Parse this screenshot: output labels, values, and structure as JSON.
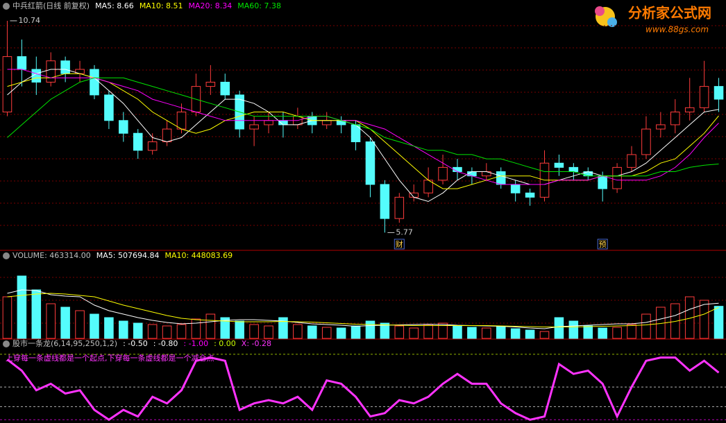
{
  "chart_data": [
    {
      "type": "candlestick",
      "title": "中兵红箭(日线 前复权)",
      "ylim": [
        5.5,
        11.0
      ],
      "up_color": "#ff3c3c",
      "down_color": "#54fcfc",
      "open": [
        8.6,
        9.9,
        9.6,
        9.3,
        9.8,
        9.5,
        9.6,
        9.0,
        8.4,
        8.1,
        7.7,
        7.9,
        8.2,
        8.6,
        9.2,
        9.3,
        9.0,
        8.2,
        8.3,
        8.4,
        8.3,
        8.5,
        8.3,
        8.4,
        8.3,
        7.9,
        6.9,
        6.1,
        6.6,
        6.7,
        7.0,
        7.3,
        7.2,
        7.1,
        7.2,
        6.9,
        6.7,
        6.6,
        7.4,
        7.3,
        7.2,
        7.1,
        6.8,
        7.3,
        7.6,
        8.2,
        8.3,
        8.6,
        8.7,
        9.2
      ],
      "high": [
        10.74,
        10.3,
        9.9,
        10.0,
        9.9,
        9.8,
        9.7,
        9.1,
        8.6,
        8.2,
        8.1,
        8.4,
        8.8,
        9.5,
        9.7,
        9.5,
        9.1,
        8.5,
        8.6,
        8.6,
        8.7,
        8.6,
        8.6,
        8.5,
        8.4,
        8.0,
        7.0,
        6.7,
        6.9,
        7.3,
        7.6,
        7.5,
        7.3,
        7.4,
        7.3,
        7.0,
        6.8,
        7.7,
        7.6,
        7.4,
        7.3,
        7.2,
        7.4,
        7.8,
        8.5,
        8.6,
        8.9,
        9.4,
        9.8,
        9.4
      ],
      "low": [
        8.5,
        9.2,
        9.0,
        9.2,
        9.3,
        9.3,
        8.9,
        8.2,
        7.9,
        7.5,
        7.6,
        7.8,
        8.1,
        8.5,
        9.0,
        8.9,
        8.0,
        7.8,
        8.1,
        8.0,
        8.2,
        8.1,
        8.2,
        8.1,
        7.7,
        6.6,
        5.77,
        6.0,
        6.5,
        6.6,
        6.9,
        7.0,
        6.9,
        7.0,
        6.8,
        6.5,
        6.4,
        6.5,
        7.1,
        7.0,
        7.0,
        6.5,
        6.7,
        7.2,
        7.5,
        8.0,
        8.1,
        8.4,
        8.6,
        8.6
      ],
      "close": [
        9.9,
        9.6,
        9.3,
        9.8,
        9.5,
        9.6,
        9.0,
        8.4,
        8.1,
        7.7,
        7.9,
        8.2,
        8.6,
        9.2,
        9.3,
        9.0,
        8.2,
        8.3,
        8.4,
        8.3,
        8.5,
        8.3,
        8.4,
        8.3,
        7.9,
        6.9,
        6.1,
        6.6,
        6.7,
        7.0,
        7.3,
        7.2,
        7.1,
        7.2,
        6.9,
        6.7,
        6.6,
        7.4,
        7.3,
        7.2,
        7.1,
        6.8,
        7.3,
        7.6,
        8.2,
        8.3,
        8.6,
        8.7,
        9.2,
        8.9
      ],
      "series": [
        {
          "name": "MA5: 8.66",
          "color": "#ffffff",
          "values": [
            9.0,
            9.3,
            9.5,
            9.6,
            9.6,
            9.5,
            9.4,
            9.1,
            8.8,
            8.4,
            8.0,
            7.9,
            8.0,
            8.3,
            8.6,
            8.9,
            8.9,
            8.8,
            8.6,
            8.3,
            8.3,
            8.4,
            8.4,
            8.4,
            8.3,
            8.0,
            7.5,
            7.0,
            6.6,
            6.5,
            6.7,
            7.0,
            7.2,
            7.2,
            7.1,
            7.0,
            6.9,
            6.9,
            7.0,
            7.1,
            7.2,
            7.1,
            7.1,
            7.2,
            7.4,
            7.7,
            8.0,
            8.3,
            8.6,
            8.66
          ]
        },
        {
          "name": "MA10: 8.51",
          "color": "#ffff00",
          "values": [
            9.2,
            9.3,
            9.4,
            9.4,
            9.5,
            9.5,
            9.4,
            9.3,
            9.1,
            8.9,
            8.6,
            8.4,
            8.2,
            8.1,
            8.2,
            8.4,
            8.5,
            8.6,
            8.6,
            8.6,
            8.5,
            8.4,
            8.4,
            8.4,
            8.4,
            8.2,
            7.9,
            7.6,
            7.3,
            7.0,
            6.8,
            6.8,
            6.9,
            7.0,
            7.1,
            7.1,
            7.1,
            7.0,
            7.0,
            7.0,
            7.0,
            7.1,
            7.1,
            7.1,
            7.2,
            7.4,
            7.5,
            7.8,
            8.1,
            8.51
          ]
        },
        {
          "name": "MA20: 8.34",
          "color": "#ff00ff",
          "values": [
            9.6,
            9.6,
            9.5,
            9.4,
            9.4,
            9.4,
            9.4,
            9.3,
            9.2,
            9.1,
            8.9,
            8.8,
            8.7,
            8.6,
            8.5,
            8.4,
            8.4,
            8.4,
            8.4,
            8.4,
            8.4,
            8.5,
            8.5,
            8.4,
            8.4,
            8.3,
            8.2,
            8.0,
            7.8,
            7.6,
            7.4,
            7.2,
            7.1,
            7.0,
            6.9,
            6.9,
            6.9,
            6.9,
            7.0,
            7.0,
            7.0,
            7.1,
            7.0,
            7.0,
            7.0,
            7.1,
            7.3,
            7.6,
            8.0,
            8.34
          ]
        },
        {
          "name": "MA60: 7.38",
          "color": "#00e600",
          "values": [
            8.0,
            8.3,
            8.6,
            8.9,
            9.1,
            9.3,
            9.4,
            9.4,
            9.4,
            9.3,
            9.2,
            9.1,
            9.0,
            8.9,
            8.8,
            8.7,
            8.6,
            8.5,
            8.5,
            8.5,
            8.5,
            8.5,
            8.5,
            8.4,
            8.3,
            8.2,
            8.0,
            7.9,
            7.8,
            7.7,
            7.7,
            7.6,
            7.6,
            7.5,
            7.5,
            7.4,
            7.3,
            7.2,
            7.2,
            7.2,
            7.1,
            7.1,
            7.1,
            7.1,
            7.1,
            7.2,
            7.2,
            7.3,
            7.35,
            7.38
          ]
        }
      ],
      "annotations": [
        {
          "text": "10.74",
          "index": 0,
          "value": 10.74
        },
        {
          "text": "5.77",
          "index": 26,
          "value": 5.77
        }
      ],
      "markers": [
        {
          "text": "财",
          "index": 27
        },
        {
          "text": "预",
          "index": 41
        }
      ]
    },
    {
      "type": "bar",
      "title": "VOLUME: 463314.00",
      "ylim": [
        0,
        1100000
      ],
      "values": [
        600000,
        900000,
        700000,
        500000,
        450000,
        400000,
        350000,
        300000,
        250000,
        220000,
        200000,
        180000,
        200000,
        280000,
        350000,
        300000,
        250000,
        200000,
        180000,
        300000,
        200000,
        180000,
        160000,
        150000,
        180000,
        250000,
        220000,
        180000,
        150000,
        200000,
        220000,
        180000,
        160000,
        150000,
        170000,
        140000,
        120000,
        100000,
        300000,
        250000,
        180000,
        150000,
        160000,
        200000,
        350000,
        450000,
        500000,
        600000,
        550000,
        463314
      ],
      "series": [
        {
          "name": "MA5: 507694.84",
          "color": "#ffffff",
          "values": [
            650000,
            700000,
            690000,
            630000,
            610000,
            600000,
            480000,
            400000,
            350000,
            300000,
            260000,
            230000,
            210000,
            220000,
            240000,
            260000,
            270000,
            270000,
            260000,
            250000,
            230000,
            210000,
            200000,
            190000,
            175000,
            185000,
            190000,
            195000,
            200000,
            205000,
            200000,
            190000,
            185000,
            180000,
            175000,
            165000,
            150000,
            140000,
            170000,
            180000,
            190000,
            200000,
            210000,
            210000,
            230000,
            280000,
            330000,
            420000,
            490000,
            507694.84
          ]
        },
        {
          "name": "MA10: 448083.69",
          "color": "#ffff00",
          "values": [
            600000,
            620000,
            640000,
            650000,
            640000,
            620000,
            600000,
            540000,
            480000,
            430000,
            380000,
            330000,
            290000,
            270000,
            260000,
            250000,
            240000,
            240000,
            240000,
            245000,
            240000,
            235000,
            225000,
            215000,
            205000,
            200000,
            195000,
            190000,
            185000,
            185000,
            185000,
            185000,
            185000,
            185000,
            180000,
            175000,
            170000,
            165000,
            165000,
            165000,
            170000,
            175000,
            180000,
            185000,
            195000,
            215000,
            245000,
            290000,
            350000,
            448083.69
          ]
        }
      ]
    },
    {
      "type": "line",
      "title": "股市一条龙(6,14,95,250,1,2)",
      "ylim": [
        -1.05,
        0.2
      ],
      "reference_lines": [
        {
          "value": -0.5,
          "label": ": -0.50",
          "color": "#ffffff"
        },
        {
          "value": -0.8,
          "label": ": -0.80",
          "color": "#ffffff"
        },
        {
          "value": -1.0,
          "label": ": -1.00",
          "color": "#ff00ff"
        },
        {
          "value": 0.0,
          "label": ": 0.00",
          "color": "#ccff00"
        }
      ],
      "series": [
        {
          "name": "X: -0.28",
          "color": "#ff33ff",
          "values": [
            -0.08,
            -0.25,
            -0.55,
            -0.45,
            -0.6,
            -0.55,
            -0.85,
            -1.0,
            -0.85,
            -0.95,
            -0.65,
            -0.75,
            -0.55,
            -0.1,
            -0.05,
            -0.1,
            -0.85,
            -0.75,
            -0.7,
            -0.75,
            -0.65,
            -0.85,
            -0.4,
            -0.45,
            -0.65,
            -0.95,
            -0.9,
            -0.7,
            -0.75,
            -0.65,
            -0.45,
            -0.3,
            -0.45,
            -0.45,
            -0.75,
            -0.9,
            -1.0,
            -0.95,
            -0.15,
            -0.3,
            -0.25,
            -0.45,
            -0.95,
            -0.5,
            -0.1,
            -0.05,
            -0.05,
            -0.25,
            -0.1,
            -0.28
          ]
        }
      ],
      "annotation": "上穿每一条虚线都是一个起点,下穿每一条虚线都是一个减仓点"
    }
  ],
  "watermark": {
    "title": "分析家公式网",
    "url": "www.88gs.com"
  }
}
